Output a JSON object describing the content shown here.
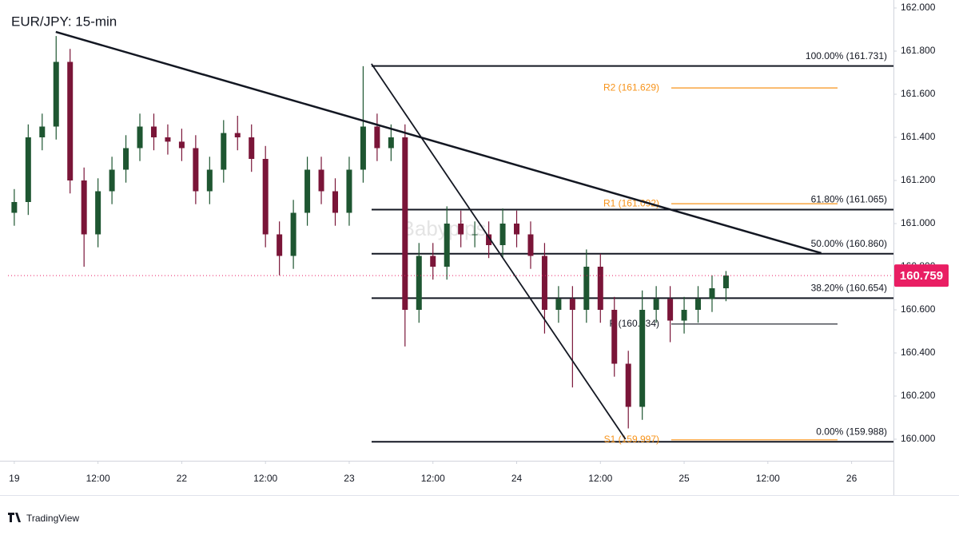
{
  "chart_data": {
    "type": "candlestick",
    "title": "EUR/JPY: 15-min",
    "watermark": "Babypips",
    "brand": "TradingView",
    "up_color": "#1e5631",
    "down_color": "#7a1538",
    "x": [
      0,
      2,
      4,
      6,
      8,
      10,
      12,
      14,
      16,
      18,
      20,
      22,
      24,
      26,
      28,
      30,
      32,
      34,
      36,
      38,
      40,
      42,
      44,
      46,
      48,
      50,
      52,
      54,
      56,
      58,
      60,
      62,
      64,
      66,
      68,
      70,
      72,
      74,
      76,
      78,
      80,
      82,
      84,
      86,
      88,
      90,
      92,
      94,
      96,
      98,
      100,
      102
    ],
    "open": [
      161.05,
      161.1,
      161.4,
      161.45,
      161.75,
      161.2,
      160.95,
      161.15,
      161.25,
      161.35,
      161.45,
      161.4,
      161.38,
      161.35,
      161.15,
      161.25,
      161.42,
      161.4,
      161.3,
      160.95,
      160.85,
      161.05,
      161.25,
      161.15,
      161.05,
      161.25,
      161.45,
      161.35,
      161.4,
      160.6,
      160.85,
      160.8,
      161.0,
      160.95,
      160.95,
      160.9,
      161.0,
      160.95,
      160.85,
      160.6,
      160.65,
      160.6,
      160.8,
      160.6,
      160.35,
      160.15,
      160.6,
      160.65,
      160.55,
      160.6,
      160.65,
      160.7
    ],
    "high": [
      161.16,
      161.46,
      161.51,
      161.87,
      161.81,
      161.26,
      161.21,
      161.31,
      161.41,
      161.51,
      161.51,
      161.46,
      161.44,
      161.41,
      161.31,
      161.48,
      161.5,
      161.46,
      161.36,
      161.01,
      161.11,
      161.31,
      161.31,
      161.21,
      161.31,
      161.73,
      161.51,
      161.46,
      161.46,
      160.91,
      160.91,
      161.08,
      161.06,
      161.01,
      161.01,
      161.07,
      161.06,
      161.01,
      160.91,
      160.71,
      160.71,
      160.88,
      160.86,
      160.66,
      160.41,
      160.69,
      160.71,
      160.71,
      160.66,
      160.71,
      160.76,
      160.78
    ],
    "low": [
      160.99,
      161.04,
      161.34,
      161.39,
      161.14,
      160.8,
      160.89,
      161.09,
      161.19,
      161.29,
      161.34,
      161.32,
      161.29,
      161.09,
      161.09,
      161.19,
      161.34,
      161.24,
      160.89,
      160.76,
      160.79,
      160.99,
      161.09,
      160.99,
      160.99,
      161.19,
      161.29,
      161.29,
      160.43,
      160.54,
      160.74,
      160.74,
      160.89,
      160.89,
      160.84,
      160.84,
      160.89,
      160.79,
      160.49,
      160.54,
      160.24,
      160.54,
      160.54,
      160.29,
      160.05,
      160.09,
      160.54,
      160.45,
      160.49,
      160.54,
      160.59,
      160.64
    ],
    "close": [
      161.1,
      161.4,
      161.45,
      161.75,
      161.2,
      160.95,
      161.15,
      161.25,
      161.35,
      161.45,
      161.4,
      161.38,
      161.35,
      161.15,
      161.25,
      161.42,
      161.4,
      161.3,
      160.95,
      160.85,
      161.05,
      161.25,
      161.15,
      161.05,
      161.25,
      161.45,
      161.35,
      161.4,
      160.6,
      160.85,
      160.8,
      161.0,
      160.95,
      160.95,
      160.9,
      161.0,
      160.95,
      160.85,
      160.6,
      160.65,
      160.6,
      160.8,
      160.6,
      160.35,
      160.15,
      160.6,
      160.65,
      160.55,
      160.6,
      160.65,
      160.7,
      160.759
    ],
    "last_price": 160.759,
    "last_price_color": "#e91e63",
    "xlim": [
      -0.9,
      126
    ],
    "xticks": [
      {
        "value": 0,
        "label": "19"
      },
      {
        "value": 12,
        "label": "12:00"
      },
      {
        "value": 24,
        "label": "22"
      },
      {
        "value": 36,
        "label": "12:00"
      },
      {
        "value": 48,
        "label": "23"
      },
      {
        "value": 60,
        "label": "12:00"
      },
      {
        "value": 72,
        "label": "24"
      },
      {
        "value": 84,
        "label": "12:00"
      },
      {
        "value": 96,
        "label": "25"
      },
      {
        "value": 108,
        "label": "12:00"
      },
      {
        "value": 120,
        "label": "26"
      }
    ],
    "ylim": [
      159.9,
      162.037
    ],
    "yticks": [
      {
        "value": 160,
        "label": "160.000"
      },
      {
        "value": 160.2,
        "label": "160.200"
      },
      {
        "value": 160.4,
        "label": "160.400"
      },
      {
        "value": 160.6,
        "label": "160.600"
      },
      {
        "value": 160.8,
        "label": "160.800"
      },
      {
        "value": 161,
        "label": "161.000"
      },
      {
        "value": 161.2,
        "label": "161.200"
      },
      {
        "value": 161.4,
        "label": "161.400"
      },
      {
        "value": 161.6,
        "label": "161.600"
      },
      {
        "value": 161.8,
        "label": "161.800"
      },
      {
        "value": 162,
        "label": "162.000"
      }
    ],
    "fib_levels": [
      {
        "value": 161.731,
        "label": "100.00% (161.731)"
      },
      {
        "value": 161.065,
        "label": "61.80% (161.065)"
      },
      {
        "value": 160.86,
        "label": "50.00% (160.860)"
      },
      {
        "value": 160.654,
        "label": "38.20% (160.654)"
      },
      {
        "value": 159.988,
        "label": "0.00% (159.988)"
      }
    ],
    "pivots": [
      {
        "value": 161.629,
        "label": "R2 (161.629)",
        "color": "#f7931a"
      },
      {
        "value": 161.092,
        "label": "R1 (161.092)",
        "color": "#f7931a"
      },
      {
        "value": 160.534,
        "label": "P (160.534)",
        "color": "#131722"
      },
      {
        "value": 159.997,
        "label": "S1 (159.997)",
        "color": "#f7931a"
      }
    ],
    "trendlines": [
      {
        "x": [
          5.95,
          115.65
        ],
        "y": [
          161.889,
          160.863
        ]
      },
      {
        "x": [
          51.19,
          87.6
        ],
        "y": [
          161.741,
          160.0
        ]
      }
    ]
  }
}
